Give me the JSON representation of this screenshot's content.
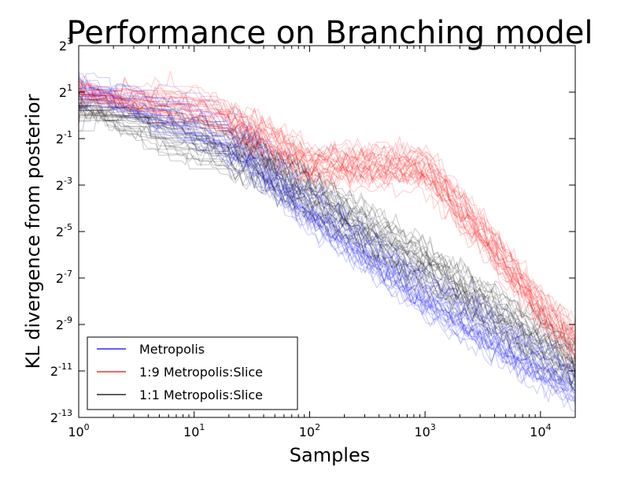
{
  "chart_data": {
    "type": "line",
    "title": "Performance on Branching model",
    "xlabel": "Samples",
    "ylabel": "KL divergence from posterior",
    "x_scale": "log10",
    "y_scale": "log2",
    "xlim": [
      1,
      20000
    ],
    "ylim": [
      0.0001220703125,
      8
    ],
    "x_ticks": [
      {
        "value": 1,
        "base": "10",
        "exp": "0"
      },
      {
        "value": 10,
        "base": "10",
        "exp": "1"
      },
      {
        "value": 100,
        "base": "10",
        "exp": "2"
      },
      {
        "value": 1000,
        "base": "10",
        "exp": "3"
      },
      {
        "value": 10000,
        "base": "10",
        "exp": "4"
      }
    ],
    "y_ticks": [
      {
        "value": 8,
        "base": "2",
        "exp": "3"
      },
      {
        "value": 2,
        "base": "2",
        "exp": "1"
      },
      {
        "value": 0.5,
        "base": "2",
        "exp": "-1"
      },
      {
        "value": 0.125,
        "base": "2",
        "exp": "-3"
      },
      {
        "value": 0.03125,
        "base": "2",
        "exp": "-5"
      },
      {
        "value": 0.0078125,
        "base": "2",
        "exp": "-7"
      },
      {
        "value": 0.001953125,
        "base": "2",
        "exp": "-9"
      },
      {
        "value": 0.00048828125,
        "base": "2",
        "exp": "-11"
      },
      {
        "value": 0.0001220703125,
        "base": "2",
        "exp": "-13"
      }
    ],
    "legend_position": "lower-left",
    "series": [
      {
        "name": "Metropolis",
        "color": "#0000ff",
        "trend": {
          "x": [
            1,
            10,
            30,
            100,
            1000,
            10000,
            20000
          ],
          "y": [
            2.3,
            0.7,
            0.3,
            0.06,
            0.0045,
            0.00055,
            0.0003
          ]
        }
      },
      {
        "name": "1:9 Metropolis:Slice",
        "color": "#ff0000",
        "trend": {
          "x": [
            1,
            10,
            30,
            100,
            1000,
            3000,
            10000,
            20000
          ],
          "y": [
            2.0,
            1.2,
            0.6,
            0.22,
            0.2,
            0.03,
            0.003,
            0.0011
          ]
        }
      },
      {
        "name": "1:1 Metropolis:Slice",
        "color": "#000000",
        "trend": {
          "x": [
            1,
            10,
            30,
            100,
            1000,
            10000,
            20000
          ],
          "y": [
            1.4,
            0.5,
            0.3,
            0.1,
            0.012,
            0.0012,
            0.0006
          ]
        }
      }
    ]
  }
}
